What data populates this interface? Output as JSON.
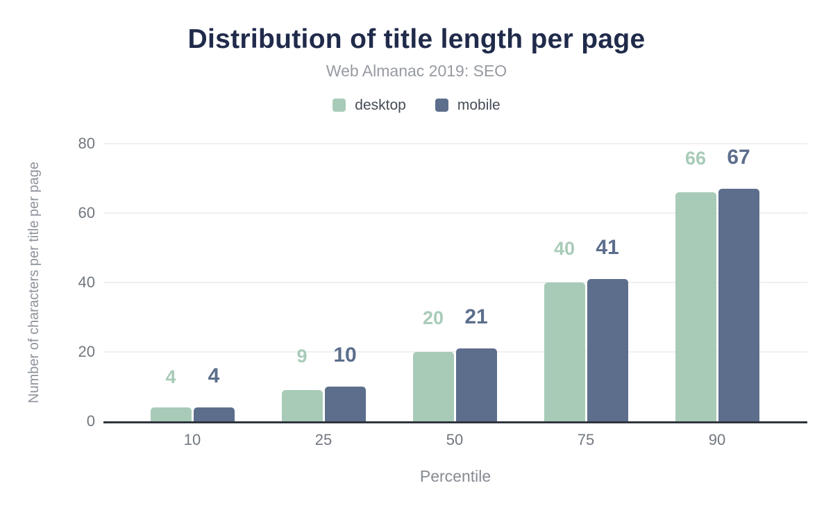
{
  "title": "Distribution of title length per page",
  "subtitle": "Web Almanac 2019: SEO",
  "legend": {
    "items": [
      {
        "label": "desktop",
        "color": "#a8cbb8"
      },
      {
        "label": "mobile",
        "color": "#5c6e8c"
      }
    ]
  },
  "chart_data": {
    "type": "bar",
    "title": "Distribution of title length per page",
    "subtitle": "Web Almanac 2019: SEO",
    "categories": [
      "10",
      "25",
      "50",
      "75",
      "90"
    ],
    "series": [
      {
        "name": "desktop",
        "color": "#a8cbb8",
        "values": [
          4,
          9,
          20,
          40,
          66
        ]
      },
      {
        "name": "mobile",
        "color": "#5c6e8c",
        "values": [
          4,
          10,
          21,
          41,
          67
        ]
      }
    ],
    "xlabel": "Percentile",
    "ylabel": "Number of characters per title per page",
    "yticks": [
      0,
      20,
      40,
      60,
      80
    ],
    "ylim": [
      0,
      80
    ],
    "grid": "horizontal",
    "legend_position": "top",
    "bar_value_labels": true
  },
  "colors": {
    "title_text": "#202b4b",
    "subtitle_text": "#969aa1",
    "tick_text": "#71777f",
    "axis_title_text": "#8d939b",
    "gridline": "#eef0f1",
    "baseline": "#2e343d",
    "background": "#ffffff"
  }
}
